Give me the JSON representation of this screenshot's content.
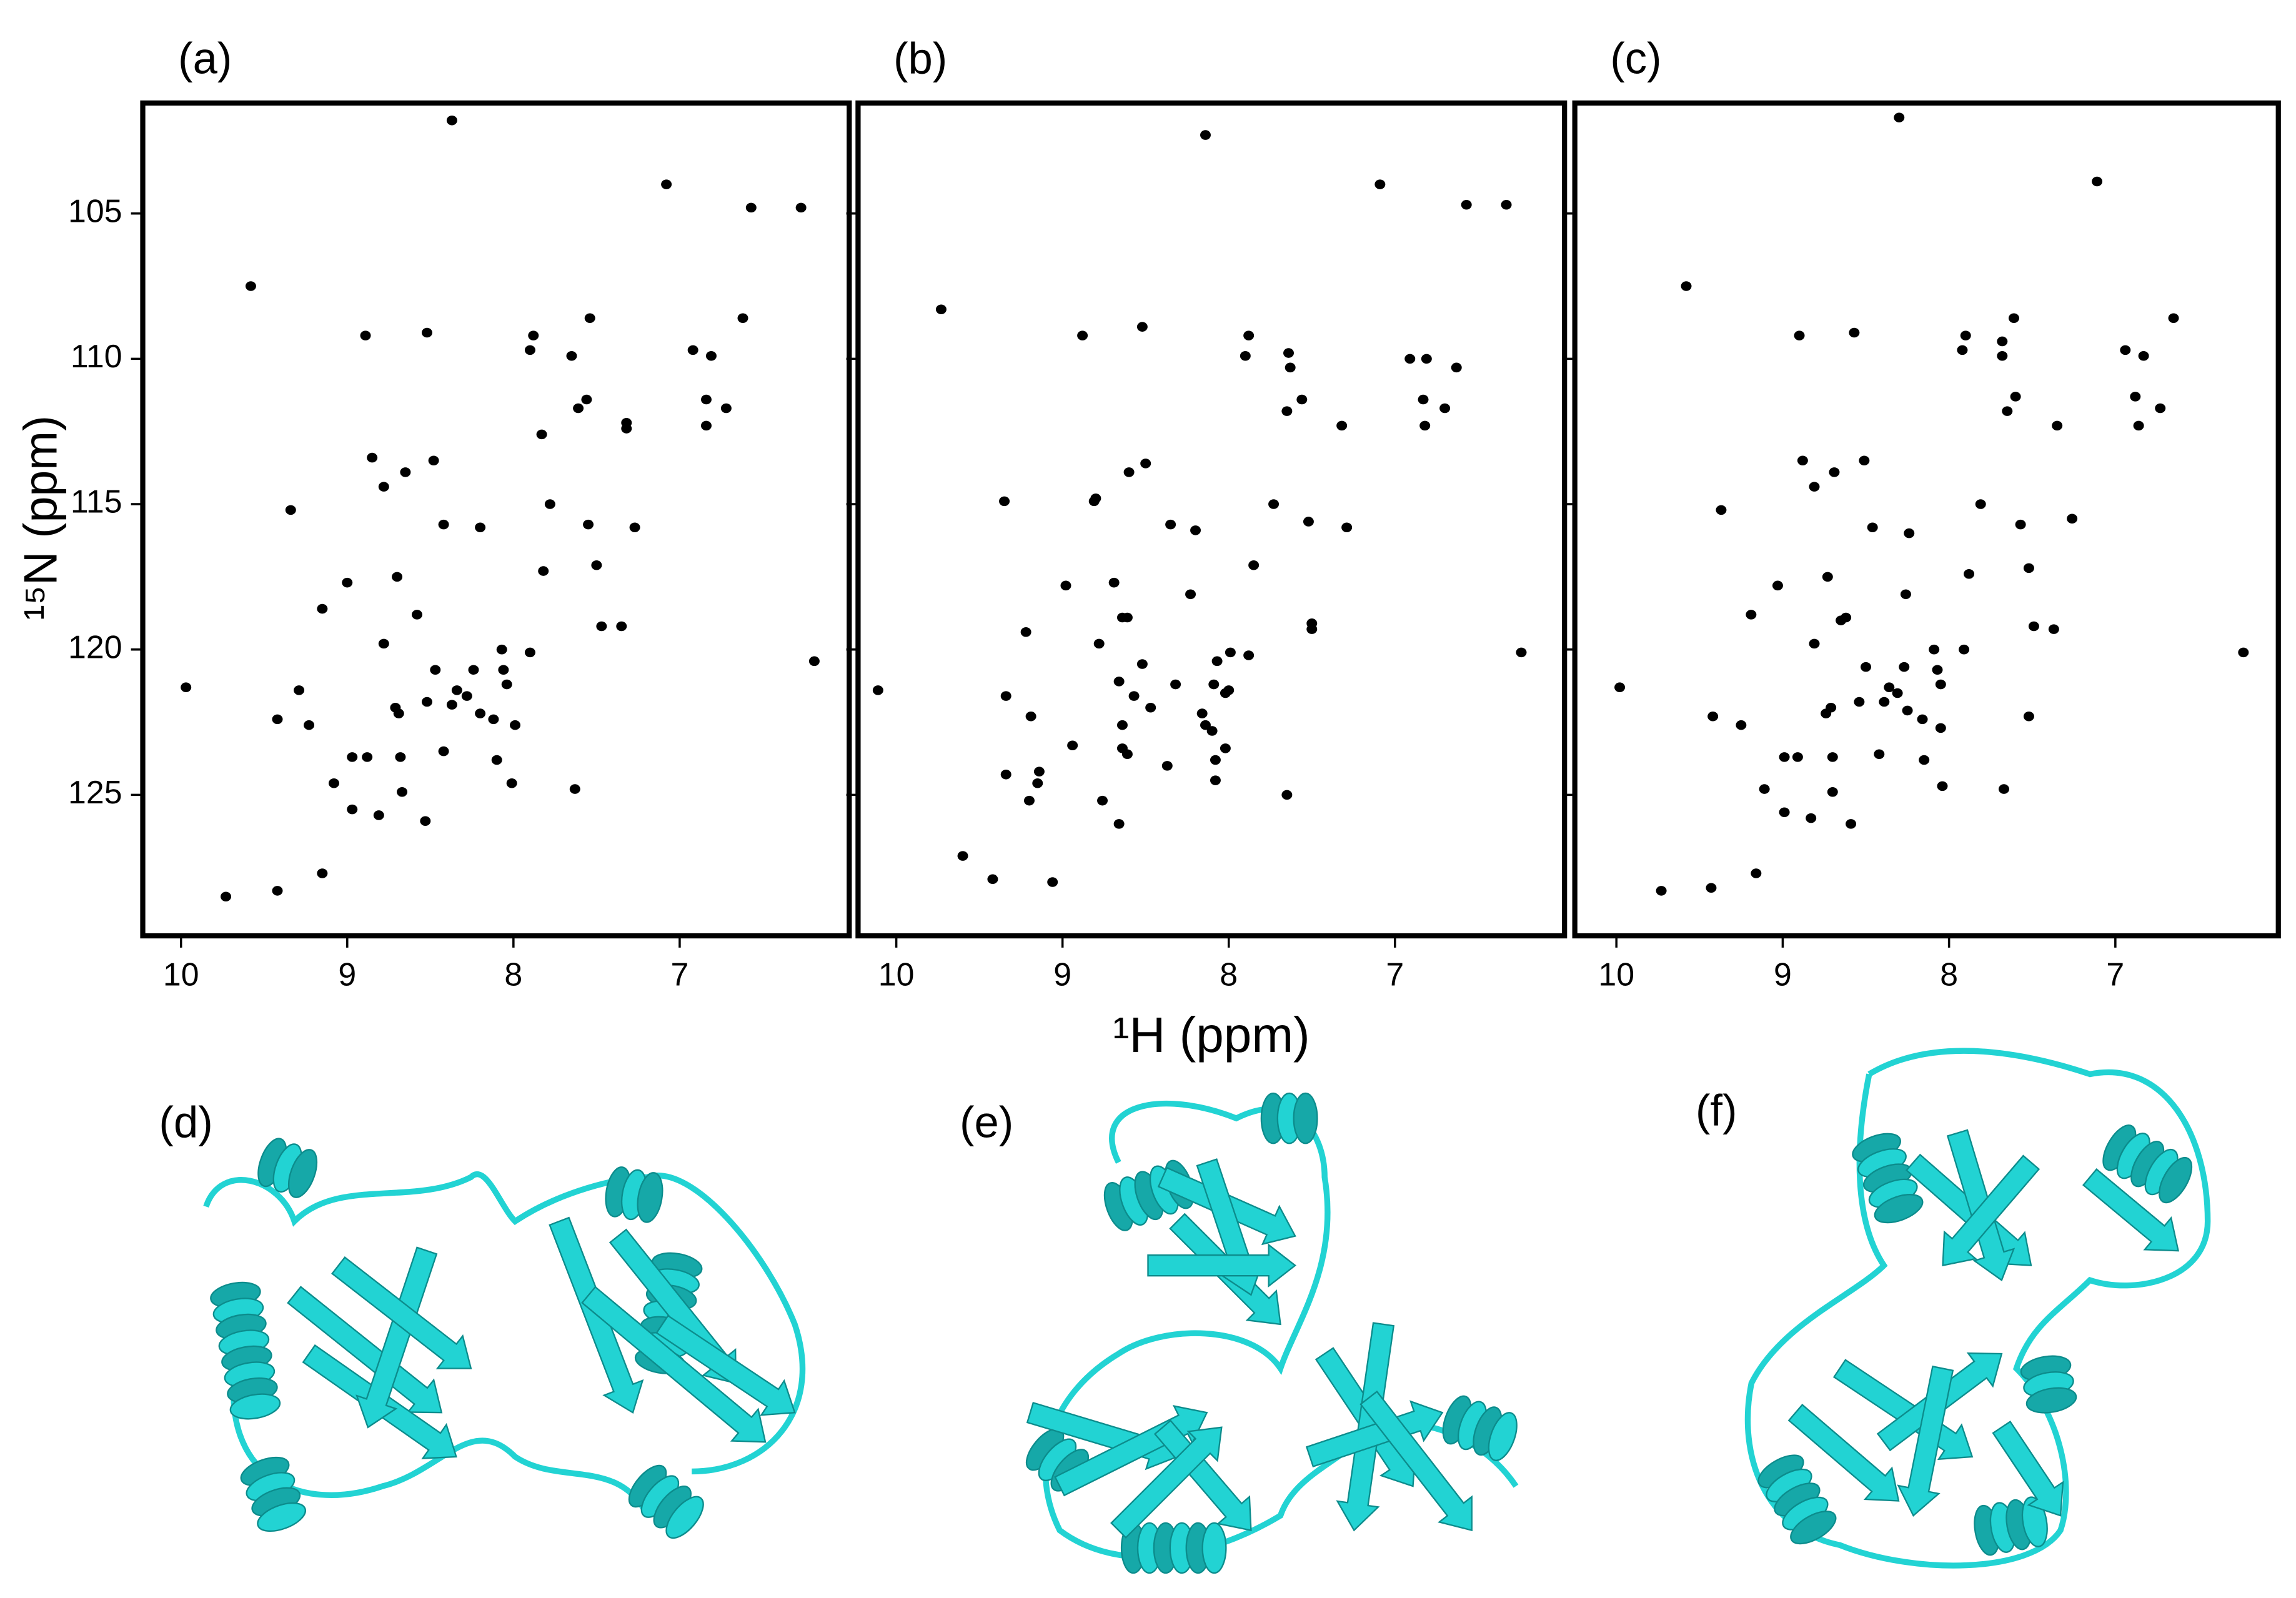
{
  "chart_data": [
    {
      "type": "scatter",
      "title": "(a)",
      "y_label": "¹⁵N (ppm)",
      "color": "#000000",
      "xlim": [
        10.23,
        5.98
      ],
      "ylim": [
        129.85,
        101.2
      ],
      "xticks": [
        10,
        9,
        8,
        7
      ],
      "yticks": [
        105,
        110,
        115,
        120,
        125
      ],
      "x": [
        8.37,
        7.08,
        6.57,
        6.27,
        9.58,
        8.89,
        8.52,
        7.88,
        7.9,
        7.54,
        7.65,
        6.62,
        6.92,
        6.81,
        7.56,
        7.61,
        6.84,
        6.72,
        6.84,
        7.32,
        7.32,
        7.83,
        8.85,
        8.48,
        8.65,
        8.78,
        9.34,
        7.78,
        8.42,
        8.2,
        7.55,
        7.27,
        7.5,
        7.82,
        8.7,
        9.0,
        8.58,
        9.15,
        7.47,
        7.35,
        8.78,
        8.07,
        7.9,
        6.19,
        9.97,
        9.29,
        8.47,
        8.24,
        8.06,
        8.04,
        8.34,
        8.28,
        8.37,
        8.52,
        8.71,
        8.69,
        8.2,
        8.12,
        7.99,
        9.42,
        9.23,
        8.42,
        8.68,
        8.1,
        8.97,
        8.88,
        9.08,
        8.01,
        7.63,
        8.67,
        8.97,
        8.81,
        8.53,
        9.15,
        9.42,
        9.73
      ],
      "values": [
        101.8,
        104.0,
        104.8,
        104.8,
        107.5,
        109.2,
        109.1,
        109.2,
        109.7,
        108.6,
        109.9,
        108.6,
        109.7,
        109.9,
        111.4,
        111.7,
        111.4,
        111.7,
        112.3,
        112.2,
        112.4,
        112.6,
        113.4,
        113.5,
        113.9,
        114.4,
        115.2,
        115.0,
        115.7,
        115.8,
        115.7,
        115.8,
        117.1,
        117.3,
        117.5,
        117.7,
        118.8,
        118.6,
        119.2,
        119.2,
        119.8,
        120.0,
        120.1,
        120.4,
        121.3,
        121.4,
        120.7,
        120.7,
        120.7,
        121.2,
        121.4,
        121.6,
        121.9,
        121.8,
        122.0,
        122.2,
        122.2,
        122.4,
        122.6,
        122.4,
        122.6,
        123.5,
        123.7,
        123.8,
        123.7,
        123.7,
        124.6,
        124.6,
        124.8,
        124.9,
        125.5,
        125.7,
        125.9,
        127.7,
        128.3,
        128.5
      ]
    },
    {
      "type": "scatter",
      "title": "(b)",
      "x_label": "¹H (ppm)",
      "color": "#000000",
      "xlim": [
        10.23,
        5.98
      ],
      "ylim": [
        129.85,
        101.2
      ],
      "xticks": [
        10,
        9,
        8,
        7
      ],
      "x": [
        8.14,
        7.09,
        6.57,
        6.33,
        9.73,
        8.88,
        8.52,
        7.88,
        7.9,
        7.64,
        7.63,
        6.91,
        6.81,
        6.63,
        7.56,
        7.65,
        6.83,
        6.7,
        6.82,
        7.32,
        8.5,
        8.6,
        8.8,
        8.81,
        9.35,
        7.73,
        8.2,
        8.35,
        7.52,
        7.29,
        7.85,
        8.69,
        8.98,
        8.64,
        8.61,
        8.23,
        9.22,
        7.5,
        7.5,
        8.78,
        6.24,
        10.11,
        7.99,
        8.07,
        7.88,
        9.34,
        8.66,
        8.52,
        8.32,
        8.09,
        8.02,
        8.0,
        8.57,
        8.47,
        8.64,
        9.19,
        8.16,
        8.14,
        8.1,
        8.02,
        8.94,
        8.64,
        8.61,
        8.37,
        8.08,
        9.34,
        9.14,
        9.15,
        8.08,
        7.65,
        8.76,
        9.2,
        8.66,
        9.6,
        9.42,
        9.06
      ],
      "values": [
        102.3,
        104.0,
        104.7,
        104.7,
        108.3,
        109.2,
        108.9,
        109.2,
        109.9,
        109.8,
        110.3,
        110.0,
        110.0,
        110.3,
        111.4,
        111.8,
        111.4,
        111.7,
        112.3,
        112.3,
        113.6,
        113.9,
        114.8,
        114.9,
        114.9,
        115.0,
        115.9,
        115.7,
        115.6,
        115.8,
        117.1,
        117.7,
        117.8,
        118.9,
        118.9,
        118.1,
        119.4,
        119.1,
        119.3,
        119.8,
        120.1,
        121.4,
        120.1,
        120.4,
        120.2,
        121.6,
        121.1,
        120.5,
        121.2,
        121.2,
        121.5,
        121.4,
        121.6,
        122.0,
        122.6,
        122.3,
        122.2,
        122.6,
        122.8,
        123.4,
        123.3,
        123.4,
        123.6,
        124.0,
        123.8,
        124.3,
        124.2,
        124.6,
        124.5,
        125.0,
        125.2,
        125.2,
        126.0,
        127.1,
        127.9,
        128.0
      ]
    },
    {
      "type": "scatter",
      "title": "(c)",
      "color": "#000000",
      "xlim": [
        10.25,
        6.02
      ],
      "ylim": [
        129.85,
        101.2
      ],
      "xticks": [
        10,
        9,
        8,
        7
      ],
      "x": [
        8.3,
        7.11,
        9.58,
        8.9,
        8.57,
        7.9,
        7.92,
        7.61,
        7.68,
        6.65,
        6.94,
        6.83,
        7.6,
        7.65,
        6.88,
        6.73,
        6.86,
        7.35,
        8.88,
        8.51,
        8.69,
        8.81,
        9.37,
        7.81,
        8.46,
        8.24,
        7.57,
        7.26,
        7.52,
        7.88,
        8.73,
        9.03,
        8.62,
        8.65,
        8.26,
        9.19,
        7.49,
        7.37,
        8.81,
        8.09,
        7.91,
        6.23,
        9.98,
        8.5,
        8.27,
        8.07,
        8.05,
        8.36,
        8.31,
        8.39,
        8.54,
        8.71,
        8.74,
        8.25,
        8.16,
        8.05,
        9.42,
        9.25,
        8.42,
        8.7,
        8.15,
        8.99,
        8.91,
        9.11,
        8.04,
        7.67,
        8.7,
        8.99,
        8.83,
        8.59,
        9.16,
        9.43,
        9.73,
        7.52,
        7.68
      ],
      "values": [
        101.7,
        103.9,
        107.5,
        109.2,
        109.1,
        109.2,
        109.7,
        108.6,
        109.9,
        108.6,
        109.7,
        109.9,
        111.3,
        111.8,
        111.3,
        111.7,
        112.3,
        112.3,
        113.5,
        113.5,
        113.9,
        114.4,
        115.2,
        115.0,
        115.8,
        116.0,
        115.7,
        115.5,
        117.2,
        117.4,
        117.5,
        117.8,
        118.9,
        119.0,
        118.1,
        118.8,
        119.2,
        119.3,
        119.8,
        120.0,
        120.0,
        120.1,
        121.3,
        120.6,
        120.6,
        120.7,
        121.2,
        121.3,
        121.5,
        121.8,
        121.8,
        122.0,
        122.2,
        122.1,
        122.4,
        122.7,
        122.3,
        122.6,
        123.6,
        123.7,
        123.8,
        123.7,
        123.7,
        124.8,
        124.7,
        124.8,
        124.9,
        125.6,
        125.8,
        126.0,
        127.7,
        128.2,
        128.3,
        122.3,
        109.4
      ]
    }
  ],
  "structure_labels": [
    "(d)",
    "(e)",
    "(f)"
  ]
}
